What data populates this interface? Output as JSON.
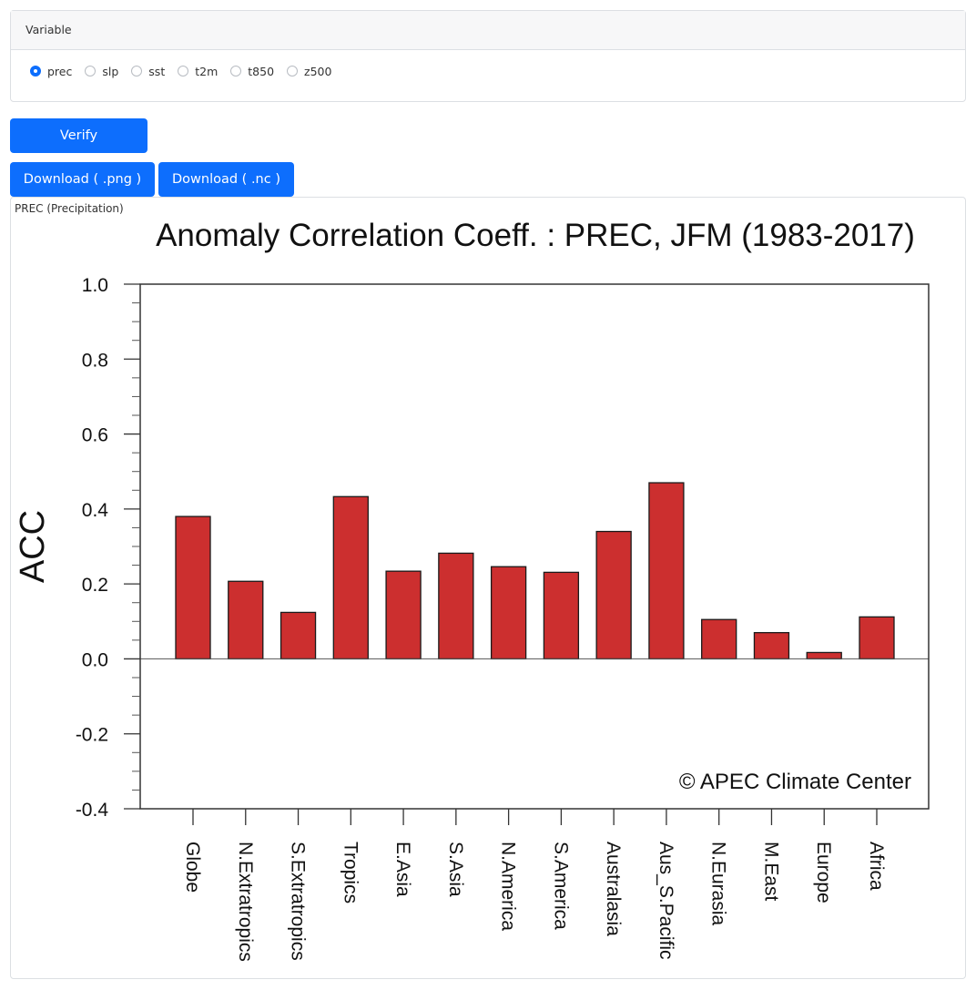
{
  "variable_panel": {
    "header": "Variable",
    "options": [
      {
        "label": "prec",
        "checked": true
      },
      {
        "label": "slp",
        "checked": false
      },
      {
        "label": "sst",
        "checked": false
      },
      {
        "label": "t2m",
        "checked": false
      },
      {
        "label": "t850",
        "checked": false
      },
      {
        "label": "z500",
        "checked": false
      }
    ]
  },
  "buttons": {
    "verify": "Verify",
    "download_png": "Download ( .png )",
    "download_nc": "Download ( .nc )"
  },
  "plot_caption": "PREC (Precipitation)",
  "colors": {
    "accent": "#0d6efd",
    "bar_fill": "#cc2f2f",
    "bar_edge": "#1a1a1a"
  },
  "chart_data": {
    "type": "bar",
    "title": "Anomaly Correlation Coeff. : PREC, JFM (1983-2017)",
    "xlabel": "",
    "ylabel": "ACC",
    "ylim": [
      -0.4,
      1.0
    ],
    "yticks": [
      "1.0",
      "0.8",
      "0.6",
      "0.4",
      "0.2",
      "0.0",
      "-0.2",
      "-0.4"
    ],
    "ytick_values": [
      1.0,
      0.8,
      0.6,
      0.4,
      0.2,
      0.0,
      -0.2,
      -0.4
    ],
    "categories": [
      "Globe",
      "N.Extratropics",
      "S.Extratropics",
      "Tropics",
      "E.Asia",
      "S.Asia",
      "N.America",
      "S.America",
      "Australasia",
      "Aus_S.Pacific",
      "N.Eurasia",
      "M.East",
      "Europe",
      "Africa"
    ],
    "values": [
      0.38,
      0.207,
      0.124,
      0.433,
      0.234,
      0.282,
      0.246,
      0.231,
      0.34,
      0.47,
      0.105,
      0.07,
      0.017,
      0.112
    ],
    "annotation": "© APEC Climate Center",
    "grid": false,
    "legend": "none"
  }
}
